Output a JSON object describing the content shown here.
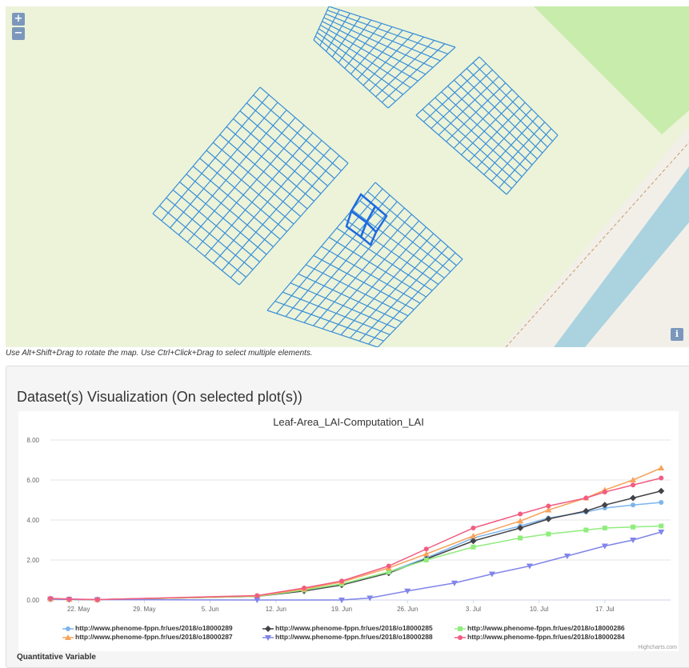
{
  "map": {
    "zoom_in": "+",
    "zoom_out": "−",
    "info": "i",
    "hint": "Use Alt+Shift+Drag to rotate the map. Use Ctrl+Click+Drag to select multiple elements.",
    "colors": {
      "background": "#ecf3d9",
      "plot": "#3a8fd8",
      "selected": "#1f6be0",
      "water": "#aad3df",
      "grass": "#c8ecab"
    }
  },
  "panel": {
    "title": "Dataset(s) Visualization (On selected plot(s))",
    "quantitative_label": "Quantitative Variable",
    "credit": "Highcharts.com"
  },
  "chart_data": {
    "type": "line",
    "title": "Leaf-Area_LAI-Computation_LAI",
    "xlabel": "",
    "ylabel": "",
    "x_ticks": [
      "22. May",
      "29. May",
      "5. Jun",
      "12. Jun",
      "19. Jun",
      "26. Jun",
      "3. Jul",
      "10. Jul",
      "17. Jul"
    ],
    "y_ticks": [
      "0.00",
      "2.00",
      "4.00",
      "6.00",
      "8.00"
    ],
    "ylim": [
      0,
      8
    ],
    "xlim": [
      "2018-05-19",
      "2018-07-24"
    ],
    "legend_position": "bottom",
    "series": [
      {
        "name": "http://www.phenome-fppn.fr/ues/2018/o18000289",
        "color": "#7cb5ec",
        "marker": "circle",
        "points": [
          [
            "2018-05-19",
            0.05
          ],
          [
            "2018-05-21",
            0.03
          ],
          [
            "2018-05-24",
            0.02
          ],
          [
            "2018-06-10",
            0.2
          ],
          [
            "2018-06-15",
            0.5
          ],
          [
            "2018-06-19",
            0.8
          ],
          [
            "2018-06-24",
            1.4
          ],
          [
            "2018-06-28",
            2.1
          ],
          [
            "2018-07-03",
            3.1
          ],
          [
            "2018-07-08",
            3.7
          ],
          [
            "2018-07-11",
            4.1
          ],
          [
            "2018-07-15",
            4.4
          ],
          [
            "2018-07-17",
            4.6
          ],
          [
            "2018-07-20",
            4.75
          ],
          [
            "2018-07-23",
            4.88
          ]
        ]
      },
      {
        "name": "http://www.phenome-fppn.fr/ues/2018/o18000285",
        "color": "#434348",
        "marker": "diamond",
        "points": [
          [
            "2018-05-19",
            0.05
          ],
          [
            "2018-05-21",
            0.03
          ],
          [
            "2018-05-24",
            0.02
          ],
          [
            "2018-06-10",
            0.18
          ],
          [
            "2018-06-15",
            0.45
          ],
          [
            "2018-06-19",
            0.75
          ],
          [
            "2018-06-24",
            1.35
          ],
          [
            "2018-06-28",
            2.05
          ],
          [
            "2018-07-03",
            2.95
          ],
          [
            "2018-07-08",
            3.6
          ],
          [
            "2018-07-11",
            4.05
          ],
          [
            "2018-07-15",
            4.45
          ],
          [
            "2018-07-17",
            4.75
          ],
          [
            "2018-07-20",
            5.1
          ],
          [
            "2018-07-23",
            5.45
          ]
        ]
      },
      {
        "name": "http://www.phenome-fppn.fr/ues/2018/o18000286",
        "color": "#90ed7d",
        "marker": "square",
        "points": [
          [
            "2018-05-19",
            0.05
          ],
          [
            "2018-05-21",
            0.03
          ],
          [
            "2018-05-24",
            0.02
          ],
          [
            "2018-06-10",
            0.18
          ],
          [
            "2018-06-15",
            0.5
          ],
          [
            "2018-06-19",
            0.8
          ],
          [
            "2018-06-24",
            1.4
          ],
          [
            "2018-06-28",
            2.0
          ],
          [
            "2018-07-03",
            2.65
          ],
          [
            "2018-07-08",
            3.1
          ],
          [
            "2018-07-11",
            3.3
          ],
          [
            "2018-07-15",
            3.5
          ],
          [
            "2018-07-17",
            3.6
          ],
          [
            "2018-07-20",
            3.65
          ],
          [
            "2018-07-23",
            3.7
          ]
        ]
      },
      {
        "name": "http://www.phenome-fppn.fr/ues/2018/o18000287",
        "color": "#f7a35c",
        "marker": "triangle",
        "points": [
          [
            "2018-05-19",
            0.05
          ],
          [
            "2018-05-21",
            0.03
          ],
          [
            "2018-05-24",
            0.02
          ],
          [
            "2018-06-10",
            0.2
          ],
          [
            "2018-06-15",
            0.55
          ],
          [
            "2018-06-19",
            0.9
          ],
          [
            "2018-06-24",
            1.6
          ],
          [
            "2018-06-28",
            2.3
          ],
          [
            "2018-07-03",
            3.2
          ],
          [
            "2018-07-08",
            3.95
          ],
          [
            "2018-07-11",
            4.5
          ],
          [
            "2018-07-15",
            5.1
          ],
          [
            "2018-07-17",
            5.5
          ],
          [
            "2018-07-20",
            6.0
          ],
          [
            "2018-07-23",
            6.6
          ]
        ]
      },
      {
        "name": "http://www.phenome-fppn.fr/ues/2018/o18000288",
        "color": "#8085e9",
        "marker": "triangle-down",
        "points": [
          [
            "2018-05-19",
            0.05
          ],
          [
            "2018-05-21",
            0.03
          ],
          [
            "2018-05-24",
            0.02
          ],
          [
            "2018-06-10",
            0.0
          ],
          [
            "2018-06-19",
            0.0
          ],
          [
            "2018-06-22",
            0.1
          ],
          [
            "2018-06-26",
            0.45
          ],
          [
            "2018-07-01",
            0.85
          ],
          [
            "2018-07-05",
            1.3
          ],
          [
            "2018-07-09",
            1.7
          ],
          [
            "2018-07-13",
            2.2
          ],
          [
            "2018-07-17",
            2.7
          ],
          [
            "2018-07-20",
            3.0
          ],
          [
            "2018-07-23",
            3.4
          ]
        ]
      },
      {
        "name": "http://www.phenome-fppn.fr/ues/2018/o18000284",
        "color": "#f15c80",
        "marker": "circle",
        "points": [
          [
            "2018-05-19",
            0.08
          ],
          [
            "2018-05-21",
            0.05
          ],
          [
            "2018-05-24",
            0.02
          ],
          [
            "2018-06-10",
            0.22
          ],
          [
            "2018-06-15",
            0.6
          ],
          [
            "2018-06-19",
            0.95
          ],
          [
            "2018-06-24",
            1.7
          ],
          [
            "2018-06-28",
            2.55
          ],
          [
            "2018-07-03",
            3.6
          ],
          [
            "2018-07-08",
            4.3
          ],
          [
            "2018-07-11",
            4.7
          ],
          [
            "2018-07-15",
            5.1
          ],
          [
            "2018-07-17",
            5.4
          ],
          [
            "2018-07-20",
            5.75
          ],
          [
            "2018-07-23",
            6.1
          ]
        ]
      }
    ]
  }
}
